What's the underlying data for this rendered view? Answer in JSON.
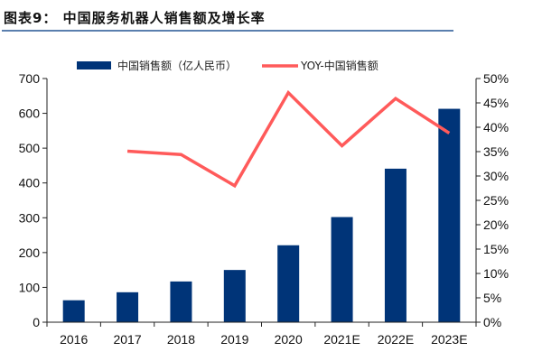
{
  "title": "图表9：   中国服务机器人销售额及增长率",
  "chart_data": {
    "type": "bar+line",
    "title": "图表9：   中国服务机器人销售额及增长率",
    "categories": [
      "2016",
      "2017",
      "2018",
      "2019",
      "2020",
      "2021E",
      "2022E",
      "2023E"
    ],
    "series": [
      {
        "name": "中国销售额（亿人民币）",
        "type": "bar",
        "axis": "left",
        "color": "#003478",
        "values": [
          63,
          86,
          117,
          150,
          221,
          302,
          441,
          613
        ]
      },
      {
        "name": "YOY-中国销售额",
        "type": "line",
        "axis": "right",
        "color": "#ff5a5a",
        "values": [
          null,
          35.1,
          34.4,
          28.0,
          47.1,
          36.2,
          45.9,
          38.8
        ]
      }
    ],
    "ylim": [
      0,
      700
    ],
    "yticks": [
      "0",
      "100",
      "200",
      "300",
      "400",
      "500",
      "600",
      "700"
    ],
    "y2lim": [
      0,
      50
    ],
    "y2ticks": [
      "0%",
      "5%",
      "10%",
      "15%",
      "20%",
      "25%",
      "30%",
      "35%",
      "40%",
      "45%",
      "50%"
    ],
    "grid": false,
    "legend_position": "top"
  }
}
